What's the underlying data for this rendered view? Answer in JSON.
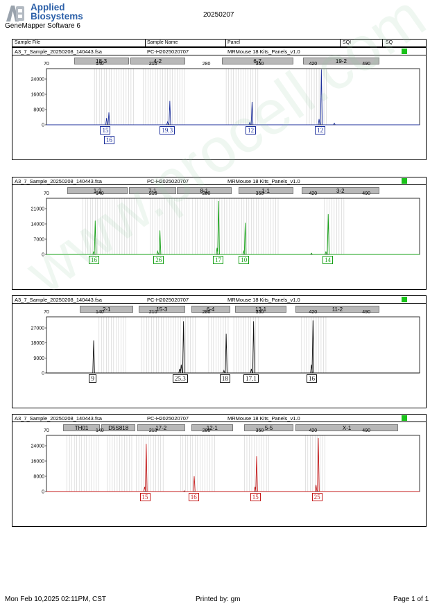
{
  "header": {
    "brand_line1": "Applied",
    "brand_line2": "Biosystems",
    "software": "GeneMapper Software 6",
    "report_date": "20250207"
  },
  "columns": {
    "sample_file": "Sample File",
    "sample_name": "Sample Name",
    "panel": "Panel",
    "sqi": "SQI",
    "sq": "SQ"
  },
  "footer": {
    "printed_on": "Mon Feb 10,2025 02:11PM, CST",
    "printed_by": "Printed by: gm",
    "page": "Page 1 of 1"
  },
  "watermark": "www.procell.com.cn",
  "chart_data": [
    {
      "type": "line",
      "sample_file": "A3_7_Sample_20250208_140443.fsa",
      "sample_name": "PC-H2025020707",
      "panel": "MRMouse 18 Kits_Panels_v1.0",
      "sq_color": "#19c219",
      "color": "#1c2f9b",
      "x_ticks": [
        "70",
        "140",
        "210",
        "280",
        "350",
        "420",
        "490"
      ],
      "xlim": [
        70,
        560
      ],
      "y_ticks": [
        "24000",
        "16000",
        "8000",
        "0"
      ],
      "ylim": [
        0,
        28000
      ],
      "markers": [
        {
          "label": "18-3",
          "from": 106,
          "to": 178
        },
        {
          "label": "4-2",
          "from": 180,
          "to": 252
        },
        {
          "label": "6-7",
          "from": 300,
          "to": 394
        },
        {
          "label": "19-2",
          "from": 407,
          "to": 507
        }
      ],
      "bins": [
        [
          133,
          187
        ],
        [
          197,
          253
        ],
        [
          306,
          348
        ],
        [
          412,
          440
        ]
      ],
      "peaks": [
        {
          "x": 149,
          "y": 3600
        },
        {
          "x": 152,
          "y": 6500
        },
        {
          "x": 229,
          "y": 1500
        },
        {
          "x": 232,
          "y": 12500
        },
        {
          "x": 337,
          "y": 1300
        },
        {
          "x": 340,
          "y": 12000
        },
        {
          "x": 428,
          "y": 3000
        },
        {
          "x": 431,
          "y": 29000
        },
        {
          "x": 448,
          "y": 800
        }
      ],
      "alleles": [
        {
          "label": "15",
          "x": 148,
          "row": 0
        },
        {
          "label": "16",
          "x": 153,
          "row": 1
        },
        {
          "label": "19.3",
          "x": 231,
          "row": 0
        },
        {
          "label": "12",
          "x": 339,
          "row": 0
        },
        {
          "label": "12",
          "x": 430,
          "row": 0
        }
      ]
    },
    {
      "type": "line",
      "sample_file": "A3_7_Sample_20250208_140443.fsa",
      "sample_name": "PC-H2025020707",
      "panel": "MRMouse 18 Kits_Panels_v1.0",
      "sq_color": "#19c219",
      "color": "#16a016",
      "x_ticks": [
        "70",
        "140",
        "210",
        "280",
        "350",
        "420",
        "490"
      ],
      "xlim": [
        70,
        560
      ],
      "y_ticks": [
        "21000",
        "14000",
        "7000",
        "0"
      ],
      "ylim": [
        0,
        24500
      ],
      "markers": [
        {
          "label": "1-2",
          "from": 97,
          "to": 177
        },
        {
          "label": "7-1",
          "from": 178,
          "to": 240
        },
        {
          "label": "8-1",
          "from": 241,
          "to": 313
        },
        {
          "label": "1-1",
          "from": 322,
          "to": 394
        },
        {
          "label": "3-2",
          "from": 405,
          "to": 507
        }
      ],
      "bins": [
        [
          118,
          190
        ],
        [
          206,
          258
        ],
        [
          262,
          320
        ],
        [
          323,
          377
        ],
        [
          435,
          462
        ]
      ],
      "peaks": [
        {
          "x": 132,
          "y": 1200
        },
        {
          "x": 134,
          "y": 15500
        },
        {
          "x": 216,
          "y": 1500
        },
        {
          "x": 219,
          "y": 11000
        },
        {
          "x": 294,
          "y": 3000
        },
        {
          "x": 296,
          "y": 24500
        },
        {
          "x": 329,
          "y": 1500
        },
        {
          "x": 331,
          "y": 14500
        },
        {
          "x": 437,
          "y": 1200
        },
        {
          "x": 440,
          "y": 18500
        },
        {
          "x": 418,
          "y": 600
        }
      ],
      "alleles": [
        {
          "label": "16",
          "x": 133,
          "row": 0
        },
        {
          "label": "26",
          "x": 218,
          "row": 0
        },
        {
          "label": "17",
          "x": 296,
          "row": 0
        },
        {
          "label": "10",
          "x": 330,
          "row": 0
        },
        {
          "label": "14",
          "x": 440,
          "row": 0
        }
      ]
    },
    {
      "type": "line",
      "sample_file": "A3_7_Sample_20250208_140443.fsa",
      "sample_name": "PC-H2025020707",
      "panel": "MRMouse 18 Kits_Panels_v1.0",
      "sq_color": "#19c219",
      "color": "#111111",
      "x_ticks": [
        "70",
        "140",
        "210",
        "280",
        "350",
        "420",
        "490"
      ],
      "xlim": [
        70,
        560
      ],
      "y_ticks": [
        "27000",
        "18000",
        "9000",
        "0"
      ],
      "ylim": [
        0,
        32000
      ],
      "markers": [
        {
          "label": "2-1",
          "from": 114,
          "to": 184
        },
        {
          "label": "15-3",
          "from": 191,
          "to": 252
        },
        {
          "label": "6-4",
          "from": 260,
          "to": 311
        },
        {
          "label": "13-1",
          "from": 318,
          "to": 385
        },
        {
          "label": "11-2",
          "from": 397,
          "to": 507
        }
      ],
      "bins": [
        [
          139,
          177
        ],
        [
          195,
          268
        ],
        [
          283,
          309
        ],
        [
          316,
          349
        ],
        [
          405,
          439
        ]
      ],
      "peaks": [
        {
          "x": 132,
          "y": 19500
        },
        {
          "x": 247,
          "y": 5000
        },
        {
          "x": 250,
          "y": 31000
        },
        {
          "x": 245,
          "y": 2500
        },
        {
          "x": 303,
          "y": 1500
        },
        {
          "x": 306,
          "y": 23500
        },
        {
          "x": 339,
          "y": 2500
        },
        {
          "x": 342,
          "y": 31000
        },
        {
          "x": 418,
          "y": 5000
        },
        {
          "x": 420,
          "y": 31500
        }
      ],
      "alleles": [
        {
          "label": "9",
          "x": 131,
          "row": 0
        },
        {
          "label": "25.3",
          "x": 248,
          "row": 0
        },
        {
          "label": "18",
          "x": 305,
          "row": 0
        },
        {
          "label": "17.1",
          "x": 341,
          "row": 0
        },
        {
          "label": "16",
          "x": 419,
          "row": 0
        }
      ]
    },
    {
      "type": "line",
      "sample_file": "A3_7_Sample_20250208_140443.fsa",
      "sample_name": "PC-H2025020707",
      "panel": "MRMouse 18 Kits_Panels_v1.0",
      "sq_color": "#19c219",
      "color": "#c41a1a",
      "x_ticks": [
        "70",
        "140",
        "210",
        "280",
        "350",
        "420",
        "490"
      ],
      "xlim": [
        70,
        560
      ],
      "y_ticks": [
        "24000",
        "16000",
        "8000",
        "0"
      ],
      "ylim": [
        0,
        28000
      ],
      "markers": [
        {
          "label": "TH01",
          "from": 92,
          "to": 140
        },
        {
          "label": "D5S818",
          "from": 142,
          "to": 187
        },
        {
          "label": "17-2",
          "from": 189,
          "to": 252
        },
        {
          "label": "12-1",
          "from": 260,
          "to": 315
        },
        {
          "label": "5-5",
          "from": 330,
          "to": 394
        },
        {
          "label": "X-1",
          "from": 397,
          "to": 532
        }
      ],
      "bins": [
        [
          97,
          140
        ],
        [
          150,
          185
        ],
        [
          188,
          225
        ],
        [
          246,
          291
        ],
        [
          330,
          365
        ],
        [
          410,
          438
        ]
      ],
      "peaks": [
        {
          "x": 199,
          "y": 2500
        },
        {
          "x": 201,
          "y": 25000
        },
        {
          "x": 264,
          "y": 8000
        },
        {
          "x": 344,
          "y": 2500
        },
        {
          "x": 346,
          "y": 18500
        },
        {
          "x": 424,
          "y": 3500
        },
        {
          "x": 427,
          "y": 28000
        },
        {
          "x": 251,
          "y": 400
        }
      ],
      "alleles": [
        {
          "label": "15",
          "x": 200,
          "row": 0
        },
        {
          "label": "16",
          "x": 264,
          "row": 0
        },
        {
          "label": "15",
          "x": 345,
          "row": 0
        },
        {
          "label": "25",
          "x": 426,
          "row": 0
        }
      ]
    }
  ]
}
